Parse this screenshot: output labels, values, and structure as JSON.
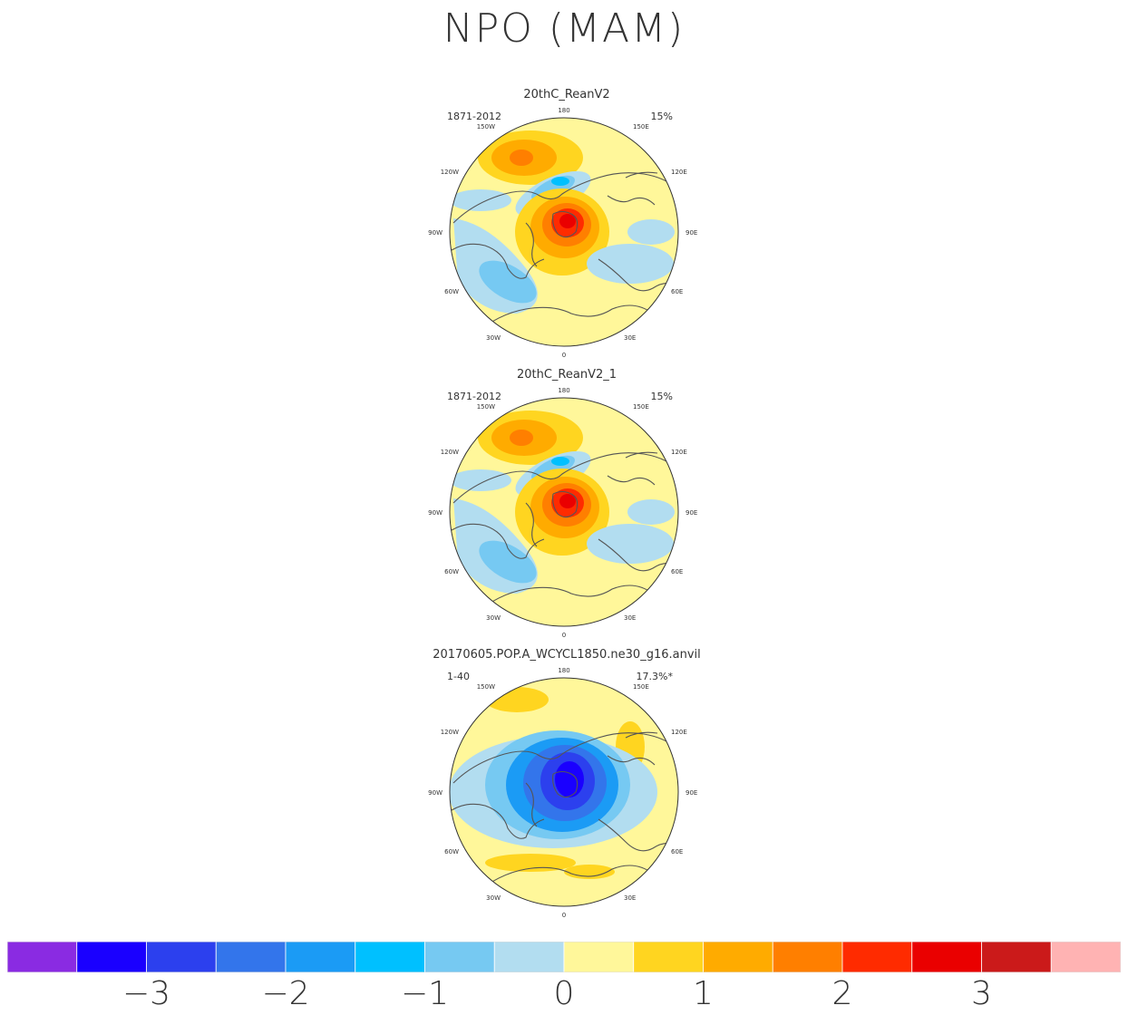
{
  "title": "NPO (MAM)",
  "panels": [
    {
      "name": "20thC_ReanV2",
      "period": "1871-2012",
      "pct": "15%",
      "pattern": "positive"
    },
    {
      "name": "20thC_ReanV2_1",
      "period": "1871-2012",
      "pct": "15%",
      "pattern": "positive"
    },
    {
      "name": "20170605.POP.A_WCYCL1850.ne30_g16.anvil",
      "period": "1-40",
      "pct": "17.3%*",
      "pattern": "negative"
    }
  ],
  "lon_labels": [
    "180",
    "150E",
    "120E",
    "90E",
    "60E",
    "30E",
    "0",
    "30W",
    "60W",
    "90W",
    "120W",
    "150W"
  ],
  "colorbar": {
    "colors": [
      "#8a2be2",
      "#1a00ff",
      "#2c40ee",
      "#3375eb",
      "#1b9bf5",
      "#00c0ff",
      "#76c9f2",
      "#b2ddf0",
      "#fff79a",
      "#ffd520",
      "#ffab00",
      "#ff7f00",
      "#ff2b00",
      "#ea0000",
      "#cb1a1a",
      "#ffb3b3"
    ],
    "tick_labels": [
      "−3",
      "−2",
      "−1",
      "0",
      "1",
      "2",
      "3"
    ]
  },
  "chart_data": {
    "type": "heatmap",
    "title": "NPO (MAM)",
    "colorbar_levels": [
      -3.5,
      -3,
      -2.5,
      -2,
      -1.5,
      -1,
      -0.5,
      0,
      0.5,
      1,
      1.5,
      2,
      2.5,
      3,
      3.5
    ],
    "colorbar_ticks": [
      -3,
      -2,
      -1,
      0,
      1,
      2,
      3
    ],
    "panels": [
      {
        "name": "20thC_ReanV2",
        "period": "1871-2012",
        "variance_explained": "15%"
      },
      {
        "name": "20thC_ReanV2_1",
        "period": "1871-2012",
        "variance_explained": "15%"
      },
      {
        "name": "20170605.POP.A_WCYCL1850.ne30_g16.anvil",
        "period": "1-40",
        "variance_explained": "17.3%*"
      }
    ]
  }
}
